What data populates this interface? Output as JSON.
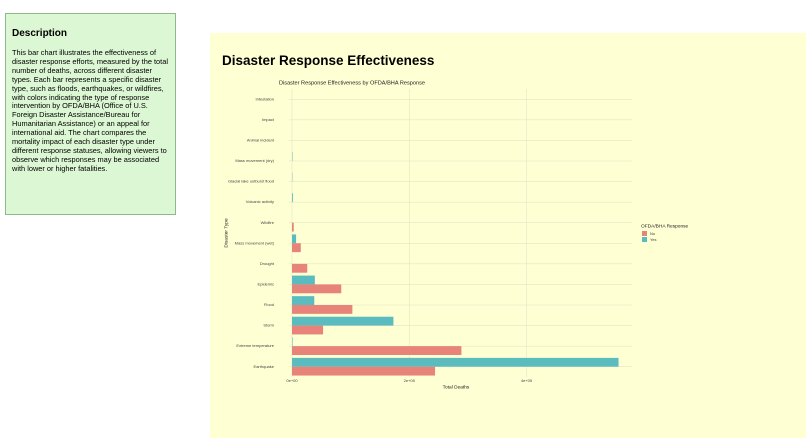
{
  "description": {
    "title": "Description",
    "text": "This bar chart illustrates the effectiveness of disaster response efforts, measured by the total number of deaths, across different disaster types. Each bar represents a specific disaster type, such as floods, earthquakes, or wildfires, with colors indicating the type of response intervention by OFDA/BHA (Office of U.S. Foreign Disaster Assistance/Bureau for Humanitarian Assistance) or an appeal for international aid. The chart compares the mortality impact of each disaster type under different response statuses, allowing viewers to observe which responses may be associated with lower or higher fatalities."
  },
  "page_title": "Disaster Response Effectiveness",
  "chart_data": {
    "type": "bar",
    "orientation": "horizontal",
    "title": "Disaster Response Effectiveness by OFDA/BHA Response",
    "x_label": "Total Deaths",
    "y_label": "Disaster Type",
    "categories": [
      "Infestation",
      "Impact",
      "Animal incident",
      "Mass movement (dry)",
      "Glacial lake outburst flood",
      "Volcanic activity",
      "Wildfire",
      "Mass movement (wet)",
      "Drought",
      "Epidemic",
      "Flood",
      "Storm",
      "Extreme temperature",
      "Earthquake"
    ],
    "series": [
      {
        "name": "No",
        "color": "#e8837a",
        "values": [
          null,
          null,
          null,
          null,
          null,
          null,
          3000,
          15000,
          26000,
          84000,
          103000,
          53000,
          289000,
          244000
        ]
      },
      {
        "name": "Yes",
        "color": "#5bbcc0",
        "values": [
          null,
          null,
          null,
          800,
          600,
          1500,
          null,
          7000,
          null,
          39000,
          38000,
          173000,
          1000,
          557000
        ]
      }
    ],
    "legend_title": "OFDA/BHA Response",
    "legend_position": "right",
    "xlim": [
      0,
      580000
    ],
    "xticks": [
      {
        "value": 0,
        "label": "0e+00"
      },
      {
        "value": 200000,
        "label": "2e+05"
      },
      {
        "value": 400000,
        "label": "4e+05"
      }
    ],
    "grid": true
  }
}
